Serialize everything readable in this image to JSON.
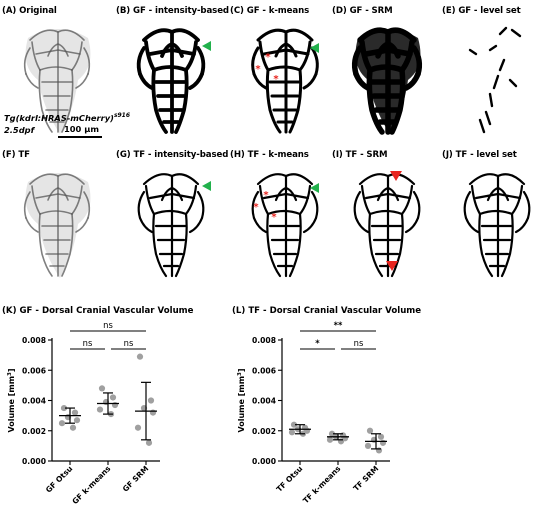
{
  "panels": [
    {
      "label": "(A) Original",
      "style": "gray"
    },
    {
      "label": "(B) GF - intensity-based",
      "style": "bold",
      "markers": [
        {
          "type": "green-arrow",
          "x": 88,
          "y": 26
        }
      ]
    },
    {
      "label": "(C) GF - k-means",
      "style": "medium",
      "markers": [
        {
          "type": "green-arrow",
          "x": 82,
          "y": 28
        },
        {
          "type": "red-star",
          "x": 40,
          "y": 40
        },
        {
          "type": "red-star",
          "x": 30,
          "y": 52
        },
        {
          "type": "red-star",
          "x": 48,
          "y": 62
        }
      ]
    },
    {
      "label": "(D) GF - SRM",
      "style": "heavy"
    },
    {
      "label": "(E) GF - level set",
      "style": "sparse"
    },
    {
      "label": "(F) TF",
      "style": "gray"
    },
    {
      "label": "(G) TF - intensity-based",
      "style": "thin",
      "markers": [
        {
          "type": "green-arrow",
          "x": 88,
          "y": 22
        }
      ]
    },
    {
      "label": "(H) TF - k-means",
      "style": "thin",
      "markers": [
        {
          "type": "green-arrow",
          "x": 82,
          "y": 24
        },
        {
          "type": "red-star",
          "x": 38,
          "y": 34
        },
        {
          "type": "red-star",
          "x": 28,
          "y": 46
        },
        {
          "type": "red-star",
          "x": 46,
          "y": 56
        }
      ]
    },
    {
      "label": "(I) TF - SRM",
      "style": "thin",
      "markers": [
        {
          "type": "red-arrow",
          "x": 66,
          "y": 10
        },
        {
          "type": "red-arrow",
          "x": 62,
          "y": 100
        }
      ]
    },
    {
      "label": "(J) TF - level set",
      "style": "thin"
    }
  ],
  "annotation": {
    "strain_main": "Tg(kdrl:HRAS-mCherry)",
    "strain_sup": "s916",
    "age": "2.5dpf",
    "scale": "100 µm"
  },
  "colors": {
    "green_arrow": "#22b14c",
    "red_marker": "#e8251f",
    "dots": "#a0a0a0"
  },
  "chart_data": [
    {
      "type": "scatter",
      "title": "(K) GF - Dorsal Cranial Vascular Volume",
      "ylabel": "Volume [mm3]",
      "ylim": [
        0,
        0.008
      ],
      "yticks": [
        "0.000",
        "0.002",
        "0.004",
        "0.006",
        "0.008"
      ],
      "categories": [
        "GF Otsu",
        "GF k-means",
        "GF SRM"
      ],
      "points": [
        [
          0.0035,
          0.0032,
          0.0029,
          0.0027,
          0.0025,
          0.0022
        ],
        [
          0.0048,
          0.0042,
          0.0039,
          0.0037,
          0.0034,
          0.0031
        ],
        [
          0.0069,
          0.004,
          0.0035,
          0.0032,
          0.0022,
          0.0012
        ]
      ],
      "mean": [
        0.003,
        0.0038,
        0.0033
      ],
      "sd": [
        0.0005,
        0.0007,
        0.0019
      ],
      "brackets": [
        {
          "from": 0,
          "to": 2,
          "level": 2,
          "label": "ns"
        },
        {
          "from": 0,
          "to": 1,
          "level": 1,
          "label": "ns"
        },
        {
          "from": 1,
          "to": 2,
          "level": 1,
          "label": "ns"
        }
      ]
    },
    {
      "type": "scatter",
      "title": "(L) TF - Dorsal Cranial Vascular Volume",
      "ylabel": "Volume [mm3]",
      "ylim": [
        0,
        0.008
      ],
      "yticks": [
        "0.000",
        "0.002",
        "0.004",
        "0.006",
        "0.008"
      ],
      "categories": [
        "TF Otsu",
        "TF k-means",
        "TF SRM"
      ],
      "points": [
        [
          0.0024,
          0.0022,
          0.0021,
          0.002,
          0.0019,
          0.0018
        ],
        [
          0.0018,
          0.0017,
          0.0016,
          0.0015,
          0.0014,
          0.0013
        ],
        [
          0.002,
          0.0016,
          0.0014,
          0.0012,
          0.001,
          0.0007
        ]
      ],
      "mean": [
        0.0021,
        0.0016,
        0.0013
      ],
      "sd": [
        0.0003,
        0.0002,
        0.0005
      ],
      "brackets": [
        {
          "from": 0,
          "to": 2,
          "level": 2,
          "label": "**"
        },
        {
          "from": 0,
          "to": 1,
          "level": 1,
          "label": "*"
        },
        {
          "from": 1,
          "to": 2,
          "level": 1,
          "label": "ns"
        }
      ]
    }
  ]
}
